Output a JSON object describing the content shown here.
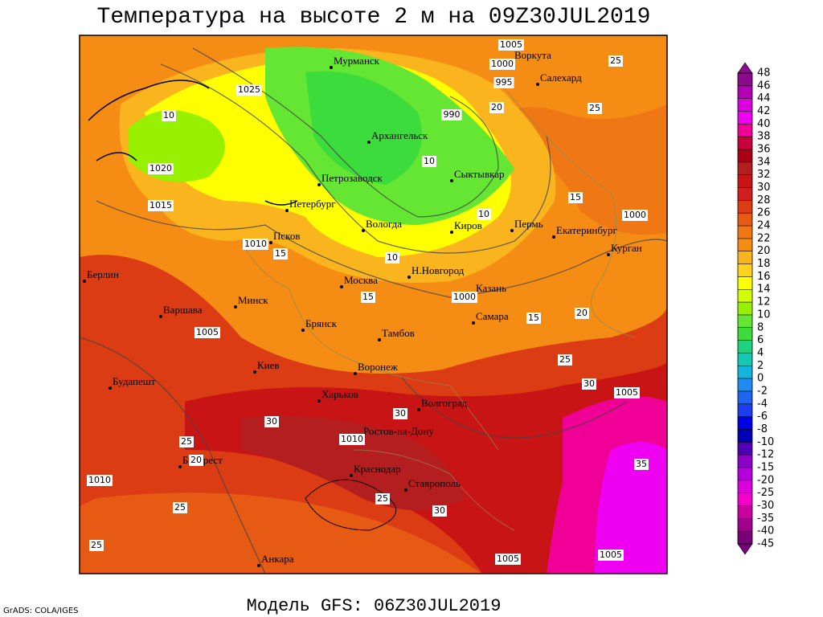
{
  "header": {
    "title": "Температура на высоте 2 м на 09Z30JUL2019"
  },
  "footer": {
    "model": "Модель GFS: 06Z30JUL2019",
    "credit": "GrADS: COLA/IGES"
  },
  "cities": [
    "Мурманск",
    "Воркута",
    "Салехард",
    "Архангельск",
    "Сыктывкар",
    "Петрозаводск",
    "Петербург",
    "Вологда",
    "Киров",
    "Пермь",
    "Екатеринбург",
    "Курган",
    "Псков",
    "Москва",
    "Н.Новгород",
    "Казань",
    "Берлин",
    "Варшава",
    "Минск",
    "Брянск",
    "Тамбов",
    "Самара",
    "Киев",
    "Воронеж",
    "Харьков",
    "Волгоград",
    "Будапешт",
    "Бухарест",
    "Ростов-на-Дону",
    "Краснодар",
    "Ставрополь",
    "Анкара"
  ],
  "contour_labels": [
    1005,
    1000,
    995,
    990,
    1025,
    1020,
    1015,
    1010,
    1005,
    1010,
    1000,
    1000,
    1005,
    1005,
    1005,
    1010,
    25,
    25,
    20,
    15,
    10,
    10,
    10,
    15,
    15,
    10,
    20,
    25,
    30,
    30,
    25,
    30,
    25,
    20,
    30,
    15,
    25,
    25,
    35
  ],
  "colorbar": {
    "labels": [
      48,
      46,
      44,
      42,
      40,
      38,
      36,
      34,
      32,
      30,
      28,
      26,
      24,
      22,
      20,
      18,
      16,
      14,
      12,
      10,
      8,
      6,
      4,
      2,
      0,
      -2,
      -4,
      -6,
      -8,
      -10,
      -12,
      -15,
      -20,
      -25,
      -30,
      -35,
      -40,
      -45
    ],
    "colors": [
      "#8c0a8c",
      "#b400b4",
      "#dc00dc",
      "#f000f0",
      "#f00096",
      "#c8003c",
      "#aa0014",
      "#b41e1e",
      "#c81414",
      "#d21e1e",
      "#dc3c14",
      "#e65a14",
      "#f07814",
      "#f58c14",
      "#fab41e",
      "#ffd21e",
      "#ffff00",
      "#d2ff00",
      "#96f000",
      "#64e632",
      "#3cdc3c",
      "#1ed282",
      "#14c8b4",
      "#14b4dc",
      "#1e8cf0",
      "#1e64f0",
      "#1e3cf0",
      "#0000e6",
      "#0000b4",
      "#5000b4",
      "#8c00c8",
      "#b400dc",
      "#dc00dc",
      "#f000c8",
      "#c800a0",
      "#a0008c",
      "#780078"
    ]
  }
}
